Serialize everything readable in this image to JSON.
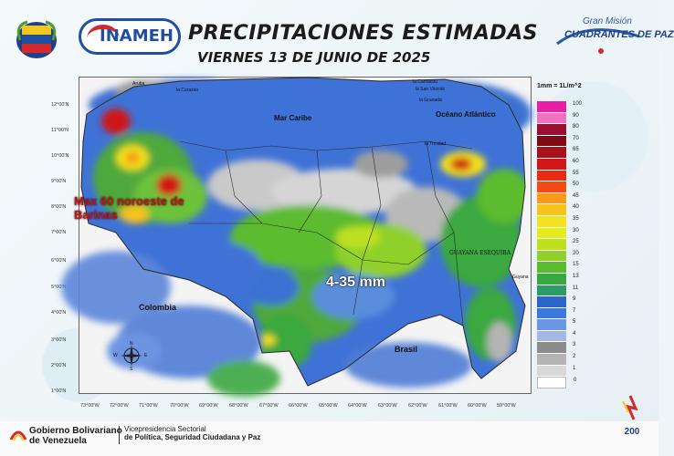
{
  "header": {
    "title": "PRECIPITACIONES ESTIMADAS",
    "date": "VIERNES 13 DE JUNIO DE 2025",
    "org_logo_text": "INAMEH"
  },
  "partner_logo": {
    "line1": "Gran Misión",
    "line2": "CUADRANTES DE PAZ"
  },
  "map": {
    "annotations": {
      "max_label": "Max 60 noroeste de Barinas",
      "range_label": "4-35 mm"
    },
    "places": {
      "mar_caribe": "Mar Caribe",
      "oceano_atlantico": "Océano Atlántico",
      "colombia": "Colombia",
      "brasil": "Brasil",
      "guayana": "GUAYANA ESEQUIBA",
      "guyana": "Guyana",
      "curazao": "la Curazao",
      "aruba": "Aruba",
      "granada": "la Granada",
      "trinidad": "la Trinidad",
      "carriacou": "la Carriacou",
      "san_vicente": "la San Vicente"
    },
    "lat_labels": [
      "12°00'N",
      "11°00'N",
      "10°00'N",
      "9°00'N",
      "8°00'N",
      "7°00'N",
      "6°00'N",
      "5°00'N",
      "4°00'N",
      "3°00'N",
      "2°00'N",
      "1°00'N"
    ],
    "lon_labels": [
      "73°00'W",
      "72°00'W",
      "71°00'W",
      "70°00'W",
      "69°00'W",
      "68°00'W",
      "67°00'W",
      "66°00'W",
      "65°00'W",
      "64°00'W",
      "63°00'W",
      "62°00'W",
      "61°00'W",
      "60°00'W",
      "59°00'W"
    ],
    "compass": {
      "n": "N",
      "s": "S",
      "e": "E",
      "w": "W"
    }
  },
  "legend": {
    "title": "1mm = 1L/m^2",
    "items": [
      {
        "value": "100",
        "color": "#e81fa6"
      },
      {
        "value": "90",
        "color": "#f071c2"
      },
      {
        "value": "80",
        "color": "#9b1030"
      },
      {
        "value": "70",
        "color": "#7e0a14"
      },
      {
        "value": "65",
        "color": "#a8101a"
      },
      {
        "value": "60",
        "color": "#d01818"
      },
      {
        "value": "55",
        "color": "#e82c14"
      },
      {
        "value": "50",
        "color": "#f54a14"
      },
      {
        "value": "45",
        "color": "#f89a18"
      },
      {
        "value": "40",
        "color": "#f7c31d"
      },
      {
        "value": "35",
        "color": "#f4e11f"
      },
      {
        "value": "30",
        "color": "#e3ec1f"
      },
      {
        "value": "25",
        "color": "#bfe021"
      },
      {
        "value": "20",
        "color": "#8fd12a"
      },
      {
        "value": "15",
        "color": "#5bbb2e"
      },
      {
        "value": "13",
        "color": "#3aa841"
      },
      {
        "value": "11",
        "color": "#2e9b6a"
      },
      {
        "value": "9",
        "color": "#2a67c9"
      },
      {
        "value": "7",
        "color": "#3a78db"
      },
      {
        "value": "5",
        "color": "#6a96e3"
      },
      {
        "value": "4",
        "color": "#a7b7e3"
      },
      {
        "value": "3",
        "color": "#8c8c8c"
      },
      {
        "value": "2",
        "color": "#b4b4b4"
      },
      {
        "value": "1",
        "color": "#d7d7d7"
      },
      {
        "value": "0",
        "color": "#ffffff"
      }
    ]
  },
  "footer": {
    "gob_line1": "Gobierno Bolivariano",
    "gob_line2": "de Venezuela",
    "vice_line1": "Vicepresidencia Sectorial",
    "vice_line2": "de Política, Seguridad Ciudadana y Paz"
  }
}
